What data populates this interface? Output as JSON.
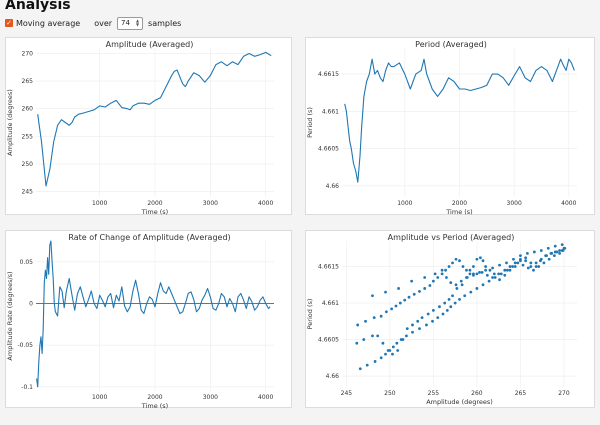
{
  "header": {
    "title": "Analysis",
    "moving_average_label": "Moving average",
    "moving_average_checked": true,
    "over_label": "over",
    "window_value": "74",
    "samples_label": "samples"
  },
  "colors": {
    "line": "#1f77b4",
    "checkbox": "#e4561c"
  },
  "chart_data": [
    {
      "type": "line",
      "title": "Amplitude (Averaged)",
      "xlabel": "Time (s)",
      "ylabel": "Amplitude (degrees)",
      "xlim": [
        -150,
        4150
      ],
      "ylim": [
        244,
        271
      ],
      "xticks": [
        1000,
        2000,
        3000,
        4000
      ],
      "xtick_labels": [
        "1000",
        "2000",
        "3000",
        "4000"
      ],
      "yticks": [
        245,
        250,
        255,
        260,
        265,
        270
      ],
      "ytick_labels": [
        "245",
        "250",
        "255",
        "260",
        "265",
        "270"
      ],
      "grid": true,
      "x": [
        -120,
        -50,
        30,
        100,
        170,
        240,
        310,
        380,
        450,
        500,
        550,
        620,
        700,
        800,
        900,
        1000,
        1100,
        1200,
        1300,
        1400,
        1500,
        1550,
        1600,
        1700,
        1800,
        1900,
        2000,
        2100,
        2200,
        2300,
        2350,
        2400,
        2500,
        2550,
        2600,
        2700,
        2800,
        2900,
        3000,
        3050,
        3100,
        3200,
        3300,
        3400,
        3500,
        3600,
        3700,
        3800,
        3900,
        4000,
        4100
      ],
      "y": [
        259,
        254,
        246,
        249,
        254,
        257,
        258,
        257.5,
        257,
        257.5,
        258.5,
        259,
        259.2,
        259.5,
        259.8,
        260.5,
        260.3,
        261,
        261.5,
        260.2,
        260,
        259.8,
        260.5,
        261,
        261,
        260.8,
        261.5,
        262,
        264,
        266,
        266.8,
        267,
        264.5,
        264,
        265,
        266.5,
        266,
        264.8,
        266,
        267,
        268,
        268.5,
        267.8,
        268.5,
        268,
        269.5,
        270,
        269.5,
        269.8,
        270.2,
        269.6
      ]
    },
    {
      "type": "line",
      "title": "Period (Averaged)",
      "xlabel": "Time (s)",
      "ylabel": "Period (s)",
      "xlim": [
        -150,
        4150
      ],
      "ylim": [
        4.65985,
        4.66185
      ],
      "xticks": [
        1000,
        2000,
        3000,
        4000
      ],
      "xtick_labels": [
        "1000",
        "2000",
        "3000",
        "4000"
      ],
      "yticks": [
        4.66,
        4.6605,
        4.661,
        4.6615
      ],
      "ytick_labels": [
        "4.66",
        "4.6605",
        "4.661",
        "4.6615"
      ],
      "grid": true,
      "x": [
        -100,
        -70,
        -40,
        -10,
        20,
        60,
        100,
        140,
        180,
        210,
        250,
        300,
        350,
        400,
        450,
        500,
        550,
        600,
        650,
        700,
        750,
        800,
        900,
        1000,
        1100,
        1200,
        1300,
        1350,
        1400,
        1500,
        1600,
        1700,
        1800,
        1900,
        2000,
        2100,
        2200,
        2300,
        2400,
        2500,
        2600,
        2700,
        2800,
        2900,
        3000,
        3100,
        3200,
        3300,
        3400,
        3500,
        3600,
        3700,
        3800,
        3850,
        3900,
        3950,
        4000,
        4050,
        4100
      ],
      "y": [
        4.6611,
        4.661,
        4.6608,
        4.6606,
        4.6605,
        4.6603,
        4.6602,
        4.66005,
        4.6604,
        4.6608,
        4.6612,
        4.6614,
        4.6615,
        4.6617,
        4.6615,
        4.66155,
        4.66145,
        4.6614,
        4.66155,
        4.66165,
        4.6616,
        4.6616,
        4.66165,
        4.6615,
        4.6613,
        4.6615,
        4.66155,
        4.6617,
        4.6615,
        4.6613,
        4.6612,
        4.6613,
        4.66145,
        4.6614,
        4.6613,
        4.6613,
        4.66128,
        4.6613,
        4.66132,
        4.66135,
        4.6615,
        4.6615,
        4.66145,
        4.66135,
        4.66148,
        4.6616,
        4.66145,
        4.6614,
        4.66155,
        4.6616,
        4.66155,
        4.6614,
        4.6616,
        4.6617,
        4.66162,
        4.66155,
        4.6617,
        4.66165,
        4.66155
      ]
    },
    {
      "type": "line",
      "title": "Rate of Change of Amplitude (Averaged)",
      "xlabel": "Time (s)",
      "ylabel": "Amplitude Rate (degrees/s)",
      "xlim": [
        -150,
        4150
      ],
      "ylim": [
        -0.105,
        0.075
      ],
      "xticks": [
        1000,
        2000,
        3000,
        4000
      ],
      "xtick_labels": [
        "1000",
        "2000",
        "3000",
        "4000"
      ],
      "yticks": [
        -0.1,
        -0.05,
        0,
        0.05
      ],
      "ytick_labels": [
        "-0.1",
        "-0.05",
        "0",
        "0.05"
      ],
      "grid": true,
      "x": [
        -140,
        -120,
        -100,
        -80,
        -60,
        -40,
        -20,
        0,
        20,
        40,
        60,
        80,
        100,
        120,
        140,
        160,
        180,
        200,
        240,
        280,
        320,
        360,
        400,
        450,
        500,
        550,
        600,
        650,
        700,
        750,
        800,
        850,
        900,
        950,
        1000,
        1050,
        1100,
        1150,
        1200,
        1250,
        1300,
        1350,
        1400,
        1450,
        1500,
        1550,
        1600,
        1650,
        1700,
        1750,
        1800,
        1850,
        1900,
        1950,
        2000,
        2050,
        2100,
        2150,
        2200,
        2250,
        2300,
        2350,
        2400,
        2450,
        2500,
        2550,
        2600,
        2650,
        2700,
        2750,
        2800,
        2850,
        2900,
        2950,
        3000,
        3050,
        3100,
        3150,
        3200,
        3250,
        3300,
        3350,
        3400,
        3450,
        3500,
        3550,
        3600,
        3650,
        3700,
        3750,
        3800,
        3850,
        3900,
        3950,
        4000,
        4050,
        4080
      ],
      "y": [
        -0.09,
        -0.1,
        -0.07,
        -0.05,
        -0.04,
        -0.06,
        -0.03,
        0.025,
        0.04,
        0.03,
        0.055,
        0.035,
        0.07,
        0.075,
        0.05,
        0.03,
        0.0,
        -0.01,
        -0.015,
        0.02,
        0.015,
        -0.005,
        0.015,
        0.03,
        0.01,
        -0.008,
        0.012,
        0.02,
        0.008,
        -0.004,
        0.005,
        0.015,
        0.0,
        -0.006,
        0.01,
        0.004,
        -0.004,
        0.008,
        0.012,
        -0.005,
        0.01,
        0.003,
        0.02,
        -0.003,
        -0.01,
        -0.004,
        0.015,
        0.028,
        0.012,
        -0.008,
        -0.012,
        0.0,
        0.008,
        0.005,
        -0.004,
        0.012,
        0.025,
        0.015,
        0.012,
        0.02,
        0.012,
        0.004,
        -0.004,
        -0.012,
        -0.01,
        0.0,
        0.012,
        0.014,
        0.005,
        -0.01,
        -0.006,
        0.004,
        0.01,
        0.018,
        0.008,
        -0.006,
        -0.008,
        0.0,
        0.012,
        0.008,
        -0.004,
        0.006,
        0.0,
        -0.01,
        0.008,
        0.012,
        0.004,
        -0.006,
        0.008,
        0.002,
        -0.008,
        -0.004,
        0.004,
        0.008,
        0.0,
        -0.006,
        -0.004
      ]
    },
    {
      "type": "scatter",
      "title": "Amplitude vs Period (Averaged)",
      "xlabel": "Amplitude (degrees)",
      "ylabel": "Period (s)",
      "xlim": [
        244.5,
        271.5
      ],
      "ylim": [
        4.65985,
        4.66185
      ],
      "xticks": [
        245,
        250,
        255,
        260,
        265,
        270
      ],
      "xtick_labels": [
        "245",
        "250",
        "255",
        "260",
        "265",
        "270"
      ],
      "yticks": [
        4.66,
        4.6605,
        4.661,
        4.6615
      ],
      "ytick_labels": [
        "4.66",
        "4.6605",
        "4.661",
        "4.6615"
      ],
      "grid": true,
      "x": [
        246.2,
        247,
        248,
        248.6,
        249.2,
        249.8,
        250.3,
        250.9,
        251.5,
        252,
        252.6,
        253.2,
        253.7,
        254.4,
        255,
        255.7,
        256.3,
        256.8,
        257.2,
        257.7,
        258.3,
        258.8,
        259.2,
        259.6,
        260,
        260.4,
        260.7,
        261,
        261.5,
        262,
        262.6,
        263.2,
        263.8,
        264.4,
        265,
        265.6,
        266.2,
        266.8,
        267.3,
        267.9,
        268.5,
        269,
        269.5,
        270,
        246.3,
        247.2,
        248.2,
        249,
        249.6,
        250.2,
        250.7,
        251.2,
        251.7,
        252.2,
        252.8,
        253.4,
        254,
        254.6,
        255,
        255.5,
        256,
        256.4,
        256.8,
        257.2,
        257.6,
        258,
        258.4,
        258.8,
        259.2,
        259.6,
        260,
        260.6,
        261.2,
        261.8,
        262.5,
        263.2,
        263.8,
        264.4,
        265,
        265.6,
        266.2,
        266.8,
        267.4,
        268,
        268.6,
        269.2,
        269.8,
        270.1,
        246.6,
        247.4,
        248.3,
        249,
        249.5,
        250,
        250.4,
        250.8,
        251.3,
        251.9,
        252.6,
        253.4,
        254.2,
        254.9,
        255.5,
        256.1,
        256.6,
        257,
        257.5,
        258,
        258.6,
        259.3,
        260,
        260.7,
        261.4,
        262.1,
        262.8,
        263.5,
        264.1,
        264.7,
        265.3,
        265.9,
        266.5,
        267.1,
        267.7,
        268.3,
        268.9,
        269.5,
        269.9,
        248,
        249.5,
        251,
        252.5,
        254,
        255.2,
        256,
        256.5,
        257,
        257.6,
        258.2,
        258.9,
        259.6,
        260.3,
        261,
        261.8,
        262.6,
        263.4,
        264.2,
        265,
        265.8,
        266.6,
        267.4,
        268.2,
        269,
        269.8
      ],
      "y": [
        4.66045,
        4.6605,
        4.66055,
        4.66055,
        4.66045,
        4.66035,
        4.6603,
        4.66035,
        4.6605,
        4.66065,
        4.6607,
        4.66075,
        4.6608,
        4.66085,
        4.6609,
        4.66095,
        4.661,
        4.66105,
        4.6611,
        4.6612,
        4.66125,
        4.66135,
        4.66145,
        4.6615,
        4.6616,
        4.66162,
        4.66158,
        4.6615,
        4.66145,
        4.6614,
        4.66132,
        4.66138,
        4.66145,
        4.6615,
        4.66158,
        4.66162,
        4.66155,
        4.6615,
        4.66158,
        4.66165,
        4.66168,
        4.6617,
        4.66172,
        4.66175,
        4.6607,
        4.66075,
        4.6608,
        4.66082,
        4.66088,
        4.66092,
        4.66096,
        4.661,
        4.66104,
        4.66108,
        4.66112,
        4.66116,
        4.6612,
        4.66124,
        4.6613,
        4.66135,
        4.6614,
        4.66145,
        4.6615,
        4.66155,
        4.6616,
        4.66158,
        4.6615,
        4.66145,
        4.6614,
        4.66138,
        4.6614,
        4.66142,
        4.66138,
        4.66135,
        4.6614,
        4.66145,
        4.6615,
        4.66155,
        4.6616,
        4.66158,
        4.6615,
        4.66155,
        4.6616,
        4.66165,
        4.66168,
        4.6617,
        4.66172,
        4.66175,
        4.6601,
        4.66015,
        4.6602,
        4.66025,
        4.6603,
        4.66035,
        4.6604,
        4.66045,
        4.6605,
        4.66055,
        4.6606,
        4.66065,
        4.6607,
        4.66075,
        4.6608,
        4.66085,
        4.6609,
        4.66095,
        4.661,
        4.66105,
        4.6611,
        4.66115,
        4.6612,
        4.66125,
        4.6613,
        4.66135,
        4.6614,
        4.66145,
        4.6615,
        4.66155,
        4.66152,
        4.66148,
        4.66145,
        4.6615,
        4.66155,
        4.6616,
        4.66165,
        4.66168,
        4.66172,
        4.6611,
        4.66115,
        4.6612,
        4.6613,
        4.66135,
        4.6614,
        4.66145,
        4.66135,
        4.66128,
        4.66125,
        4.6613,
        4.66135,
        4.6614,
        4.66142,
        4.66145,
        4.66148,
        4.66152,
        4.66155,
        4.6616,
        4.66165,
        4.66168,
        4.6617,
        4.66172,
        4.66175,
        4.66178,
        4.6618
      ]
    }
  ]
}
